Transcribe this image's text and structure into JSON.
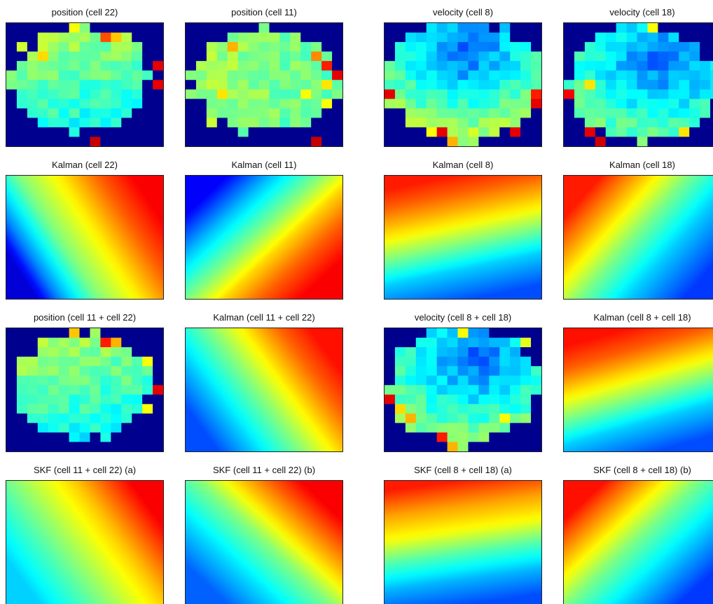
{
  "figure": {
    "colormap": [
      "#00008f",
      "#0000ff",
      "#0080ff",
      "#00ffff",
      "#80ff80",
      "#ffff00",
      "#ff8000",
      "#ff0000",
      "#800000"
    ]
  },
  "chart_data": [
    {
      "type": "heatmap",
      "subtype": "binned-map",
      "title": "position (cell 22)",
      "grid": {
        "cols": 15,
        "rows": 13
      },
      "outside_value": 0,
      "seed": 22,
      "center": [
        0.47,
        0.45
      ],
      "radii": [
        0.43,
        0.43
      ],
      "field": {
        "kind": "linear",
        "angle": 75,
        "min": 0.35,
        "max": 0.55
      },
      "hot": [
        [
          6,
          0,
          0.62
        ],
        [
          9,
          1,
          0.8
        ],
        [
          10,
          1,
          0.68
        ],
        [
          14,
          4,
          0.9
        ],
        [
          14,
          6,
          0.9
        ],
        [
          3,
          3,
          0.66
        ],
        [
          8,
          12,
          0.93
        ]
      ]
    },
    {
      "type": "heatmap",
      "subtype": "binned-map",
      "title": "position (cell 11)",
      "grid": {
        "cols": 15,
        "rows": 13
      },
      "outside_value": 0,
      "seed": 11,
      "center": [
        0.5,
        0.48
      ],
      "radii": [
        0.46,
        0.42
      ],
      "field": {
        "kind": "linear",
        "angle": 10,
        "min": 0.45,
        "max": 0.55
      },
      "hot": [
        [
          4,
          2,
          0.7
        ],
        [
          12,
          3,
          0.74
        ],
        [
          13,
          4,
          0.85
        ],
        [
          14,
          5,
          0.9
        ],
        [
          13,
          6,
          0.65
        ],
        [
          3,
          7,
          0.65
        ],
        [
          11,
          7,
          0.62
        ],
        [
          13,
          8,
          0.62
        ],
        [
          12,
          12,
          0.93
        ]
      ]
    },
    {
      "type": "heatmap",
      "subtype": "binned-map",
      "title": "velocity (cell 8)",
      "grid": {
        "cols": 15,
        "rows": 13
      },
      "outside_value": 0,
      "seed": 8,
      "center": [
        0.5,
        0.46
      ],
      "radii": [
        0.49,
        0.5
      ],
      "field": {
        "kind": "radial",
        "center": [
          0.52,
          0.22
        ],
        "min": 0.2,
        "max": 0.55
      },
      "hot": [
        [
          0,
          7,
          0.9
        ],
        [
          14,
          7,
          0.85
        ],
        [
          14,
          8,
          0.9
        ],
        [
          4,
          11,
          0.62
        ],
        [
          5,
          11,
          0.9
        ],
        [
          12,
          11,
          0.9
        ],
        [
          6,
          12,
          0.7
        ]
      ]
    },
    {
      "type": "heatmap",
      "subtype": "binned-map",
      "title": "velocity (cell 18)",
      "grid": {
        "cols": 15,
        "rows": 13
      },
      "outside_value": 0,
      "seed": 18,
      "center": [
        0.5,
        0.48
      ],
      "radii": [
        0.49,
        0.47
      ],
      "field": {
        "kind": "radial",
        "center": [
          0.62,
          0.3
        ],
        "min": 0.22,
        "max": 0.5
      },
      "hot": [
        [
          8,
          0,
          0.62
        ],
        [
          0,
          7,
          0.88
        ],
        [
          2,
          6,
          0.65
        ],
        [
          2,
          11,
          0.9
        ],
        [
          3,
          12,
          0.92
        ],
        [
          11,
          11,
          0.65
        ]
      ]
    },
    {
      "type": "heatmap",
      "subtype": "smooth-gradient",
      "title": "Kalman (cell 22)",
      "gradient": {
        "angle": -27,
        "stops": [
          [
            0,
            0.08
          ],
          [
            0.12,
            0.25
          ],
          [
            0.35,
            0.5
          ],
          [
            0.6,
            0.65
          ],
          [
            0.8,
            0.78
          ],
          [
            1,
            0.88
          ]
        ]
      }
    },
    {
      "type": "heatmap",
      "subtype": "smooth-gradient",
      "title": "Kalman (cell 11)",
      "gradient": {
        "angle": 40,
        "stops": [
          [
            0,
            0.12
          ],
          [
            0.2,
            0.3
          ],
          [
            0.45,
            0.5
          ],
          [
            0.62,
            0.66
          ],
          [
            0.8,
            0.78
          ],
          [
            1,
            0.88
          ]
        ]
      }
    },
    {
      "type": "heatmap",
      "subtype": "smooth-gradient",
      "title": "Kalman (cell 8)",
      "gradient": {
        "angle": -105,
        "stops": [
          [
            0,
            0.2
          ],
          [
            0.25,
            0.33
          ],
          [
            0.45,
            0.5
          ],
          [
            0.62,
            0.64
          ],
          [
            0.85,
            0.78
          ],
          [
            1,
            0.85
          ]
        ]
      }
    },
    {
      "type": "heatmap",
      "subtype": "smooth-gradient",
      "title": "Kalman (cell 18)",
      "gradient": {
        "angle": -145,
        "stops": [
          [
            0,
            0.18
          ],
          [
            0.3,
            0.33
          ],
          [
            0.55,
            0.5
          ],
          [
            0.72,
            0.64
          ],
          [
            0.88,
            0.76
          ],
          [
            1,
            0.85
          ]
        ]
      }
    },
    {
      "type": "heatmap",
      "subtype": "binned-map",
      "title": "position (cell 11 + cell 22)",
      "grid": {
        "cols": 15,
        "rows": 13
      },
      "outside_value": 0,
      "seed": 33,
      "center": [
        0.48,
        0.48
      ],
      "radii": [
        0.45,
        0.42
      ],
      "field": {
        "kind": "linear",
        "angle": 75,
        "min": 0.35,
        "max": 0.55
      },
      "hot": [
        [
          6,
          0,
          0.68
        ],
        [
          9,
          1,
          0.85
        ],
        [
          10,
          1,
          0.7
        ],
        [
          13,
          3,
          0.62
        ],
        [
          14,
          6,
          0.9
        ],
        [
          13,
          8,
          0.62
        ]
      ]
    },
    {
      "type": "heatmap",
      "subtype": "smooth-gradient",
      "title": "Kalman (cell 11 + cell 22)",
      "gradient": {
        "angle": -30,
        "stops": [
          [
            0,
            0.2
          ],
          [
            0.2,
            0.33
          ],
          [
            0.45,
            0.5
          ],
          [
            0.65,
            0.65
          ],
          [
            0.82,
            0.77
          ],
          [
            1,
            0.86
          ]
        ]
      }
    },
    {
      "type": "heatmap",
      "subtype": "binned-map",
      "title": "velocity (cell 8 + cell 18)",
      "grid": {
        "cols": 15,
        "rows": 13
      },
      "outside_value": 0,
      "seed": 26,
      "center": [
        0.5,
        0.47
      ],
      "radii": [
        0.49,
        0.48
      ],
      "field": {
        "kind": "radial",
        "center": [
          0.58,
          0.24
        ],
        "min": 0.22,
        "max": 0.52
      },
      "hot": [
        [
          0,
          7,
          0.9
        ],
        [
          1,
          8,
          0.66
        ],
        [
          2,
          9,
          0.7
        ],
        [
          7,
          0,
          0.62
        ],
        [
          5,
          11,
          0.85
        ],
        [
          6,
          12,
          0.7
        ],
        [
          11,
          9,
          0.62
        ],
        [
          13,
          1,
          0.6
        ]
      ]
    },
    {
      "type": "heatmap",
      "subtype": "smooth-gradient",
      "title": "Kalman (cell 8 + cell 18)",
      "gradient": {
        "angle": -110,
        "stops": [
          [
            0,
            0.2
          ],
          [
            0.25,
            0.33
          ],
          [
            0.45,
            0.5
          ],
          [
            0.62,
            0.64
          ],
          [
            0.82,
            0.78
          ],
          [
            1,
            0.86
          ]
        ]
      }
    },
    {
      "type": "heatmap",
      "subtype": "smooth-gradient",
      "title": "SKF (cell 11 + cell 22) (a)",
      "gradient": {
        "angle": -30,
        "stops": [
          [
            0,
            0.33
          ],
          [
            0.25,
            0.45
          ],
          [
            0.5,
            0.58
          ],
          [
            0.7,
            0.68
          ],
          [
            0.85,
            0.78
          ],
          [
            1,
            0.88
          ]
        ]
      }
    },
    {
      "type": "heatmap",
      "subtype": "smooth-gradient",
      "title": "SKF (cell 11 + cell 22) (b)",
      "gradient": {
        "angle": -40,
        "stops": [
          [
            0,
            0.22
          ],
          [
            0.25,
            0.35
          ],
          [
            0.5,
            0.5
          ],
          [
            0.68,
            0.66
          ],
          [
            0.85,
            0.78
          ],
          [
            1,
            0.88
          ]
        ]
      }
    },
    {
      "type": "heatmap",
      "subtype": "smooth-gradient",
      "title": "SKF (cell 8 + cell 18) (a)",
      "gradient": {
        "angle": -100,
        "stops": [
          [
            0,
            0.2
          ],
          [
            0.2,
            0.3
          ],
          [
            0.42,
            0.46
          ],
          [
            0.6,
            0.62
          ],
          [
            0.8,
            0.72
          ],
          [
            1,
            0.85
          ]
        ]
      }
    },
    {
      "type": "heatmap",
      "subtype": "smooth-gradient",
      "title": "SKF (cell 8 + cell 18) (b)",
      "gradient": {
        "angle": -140,
        "stops": [
          [
            0,
            0.18
          ],
          [
            0.3,
            0.35
          ],
          [
            0.55,
            0.5
          ],
          [
            0.72,
            0.64
          ],
          [
            0.9,
            0.78
          ],
          [
            1,
            0.86
          ]
        ]
      }
    }
  ]
}
